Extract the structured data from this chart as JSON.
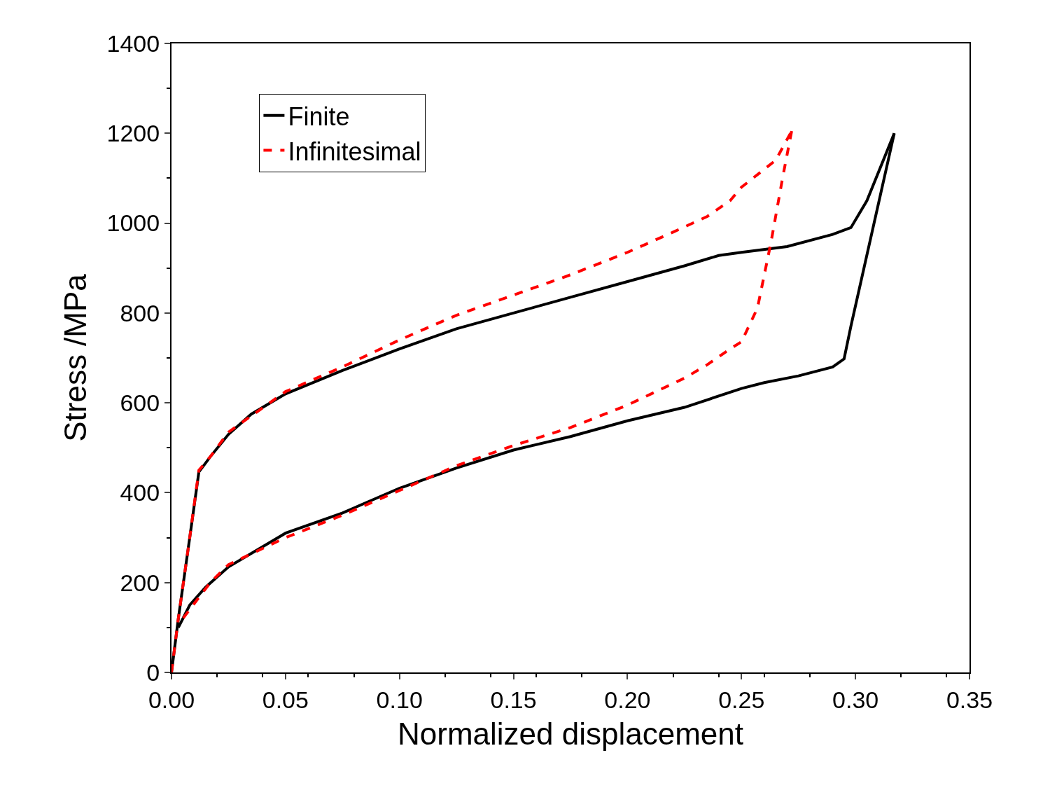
{
  "chart_data": {
    "type": "line",
    "xlabel": "Normalized displacement",
    "ylabel": "Stress /MPa",
    "xlim": [
      0,
      0.35
    ],
    "xticks": [
      {
        "value": 0,
        "label": "0.00"
      },
      {
        "value": 0.05,
        "label": "0.05"
      },
      {
        "value": 0.1,
        "label": "0.10"
      },
      {
        "value": 0.15,
        "label": "0.15"
      },
      {
        "value": 0.2,
        "label": "0.20"
      },
      {
        "value": 0.25,
        "label": "0.25"
      },
      {
        "value": 0.3,
        "label": "0.30"
      },
      {
        "value": 0.35,
        "label": "0.35"
      }
    ],
    "ylim": [
      0,
      1400
    ],
    "yticks": [
      0,
      200,
      400,
      600,
      800,
      1000,
      1200,
      1400
    ],
    "grid": false,
    "legend": "top left",
    "marker": "none",
    "series": [
      {
        "name": "Finite",
        "color": "#000000",
        "line_style": "solid",
        "x": [
          0,
          0.003,
          0.008,
          0.012,
          0.017,
          0.025,
          0.035,
          0.05,
          0.075,
          0.1,
          0.125,
          0.15,
          0.175,
          0.2,
          0.225,
          0.24,
          0.25,
          0.27,
          0.29,
          0.298,
          0.305,
          0.317
        ],
        "values": [
          0,
          120,
          300,
          446,
          480,
          530,
          575,
          620,
          672,
          720,
          765,
          800,
          835,
          870,
          905,
          928,
          935,
          948,
          975,
          990,
          1050,
          1200
        ]
      },
      {
        "name": "Infinitesimal",
        "color": "#ff0000",
        "line_style": "dashed",
        "x": [
          0,
          0.003,
          0.008,
          0.012,
          0.017,
          0.025,
          0.05,
          0.075,
          0.1,
          0.125,
          0.15,
          0.175,
          0.2,
          0.22,
          0.235,
          0.245,
          0.25,
          0.265,
          0.272
        ],
        "values": [
          0,
          120,
          300,
          450,
          480,
          535,
          625,
          680,
          740,
          795,
          840,
          885,
          935,
          980,
          1015,
          1050,
          1080,
          1140,
          1205
        ]
      },
      {
        "color": "#000000",
        "line_style": "solid",
        "x": [
          0.317,
          0.298,
          0.295,
          0.29,
          0.275,
          0.26,
          0.25,
          0.225,
          0.2,
          0.175,
          0.15,
          0.125,
          0.1,
          0.075,
          0.05,
          0.025,
          0.015,
          0.008,
          0.003
        ],
        "values": [
          1200,
          771,
          698,
          680,
          660,
          645,
          632,
          590,
          560,
          525,
          495,
          455,
          410,
          355,
          310,
          235,
          190,
          150,
          100
        ]
      },
      {
        "color": "#ff0000",
        "line_style": "dashed",
        "x": [
          0.272,
          0.268,
          0.263,
          0.257,
          0.25,
          0.245,
          0.235,
          0.225,
          0.2,
          0.175,
          0.15,
          0.125,
          0.1,
          0.075,
          0.05,
          0.025,
          0.017,
          0.005
        ],
        "values": [
          1205,
          1100,
          959,
          811,
          736,
          720,
          685,
          655,
          595,
          545,
          505,
          460,
          405,
          350,
          300,
          240,
          200,
          120
        ]
      }
    ]
  }
}
